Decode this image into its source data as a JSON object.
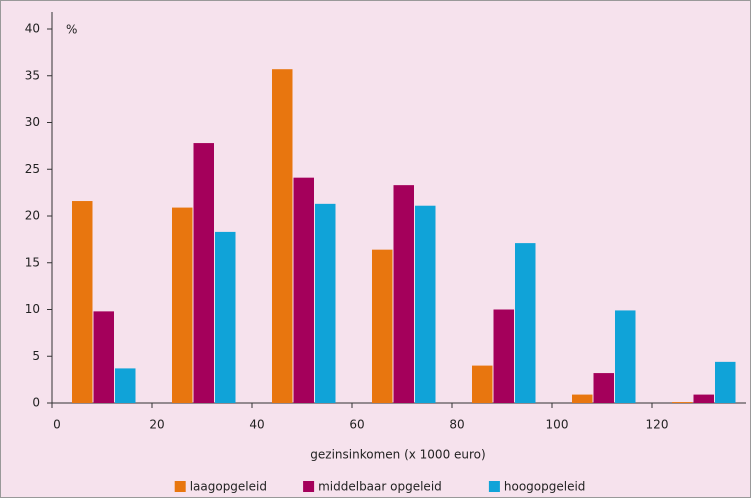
{
  "chart_data": {
    "type": "bar",
    "unit": "%",
    "x_label": "gezinsinkomen (x 1000 euro)",
    "categories": [
      null,
      null,
      null,
      null,
      null,
      null,
      null
    ],
    "xlim": [
      0,
      140
    ],
    "xticks": [
      0,
      20,
      40,
      60,
      80,
      100,
      120
    ],
    "ylim": [
      0,
      40
    ],
    "yticks": [
      0,
      5,
      10,
      15,
      20,
      25,
      30,
      35,
      40
    ],
    "grid": false,
    "legend": "bottom",
    "series": [
      {
        "name": "laagopgeleid",
        "color": "#e8760f",
        "values": [
          21.6,
          20.9,
          35.7,
          16.4,
          4.0,
          0.9,
          0.1
        ]
      },
      {
        "name": "middelbaar opgeleid",
        "color": "#a4005b",
        "values": [
          9.8,
          27.8,
          24.1,
          23.3,
          10.0,
          3.2,
          0.9
        ]
      },
      {
        "name": "hoogopgeleid",
        "color": "#10a3d8",
        "values": [
          3.7,
          18.3,
          21.3,
          21.1,
          17.1,
          9.9,
          4.4
        ]
      }
    ]
  }
}
